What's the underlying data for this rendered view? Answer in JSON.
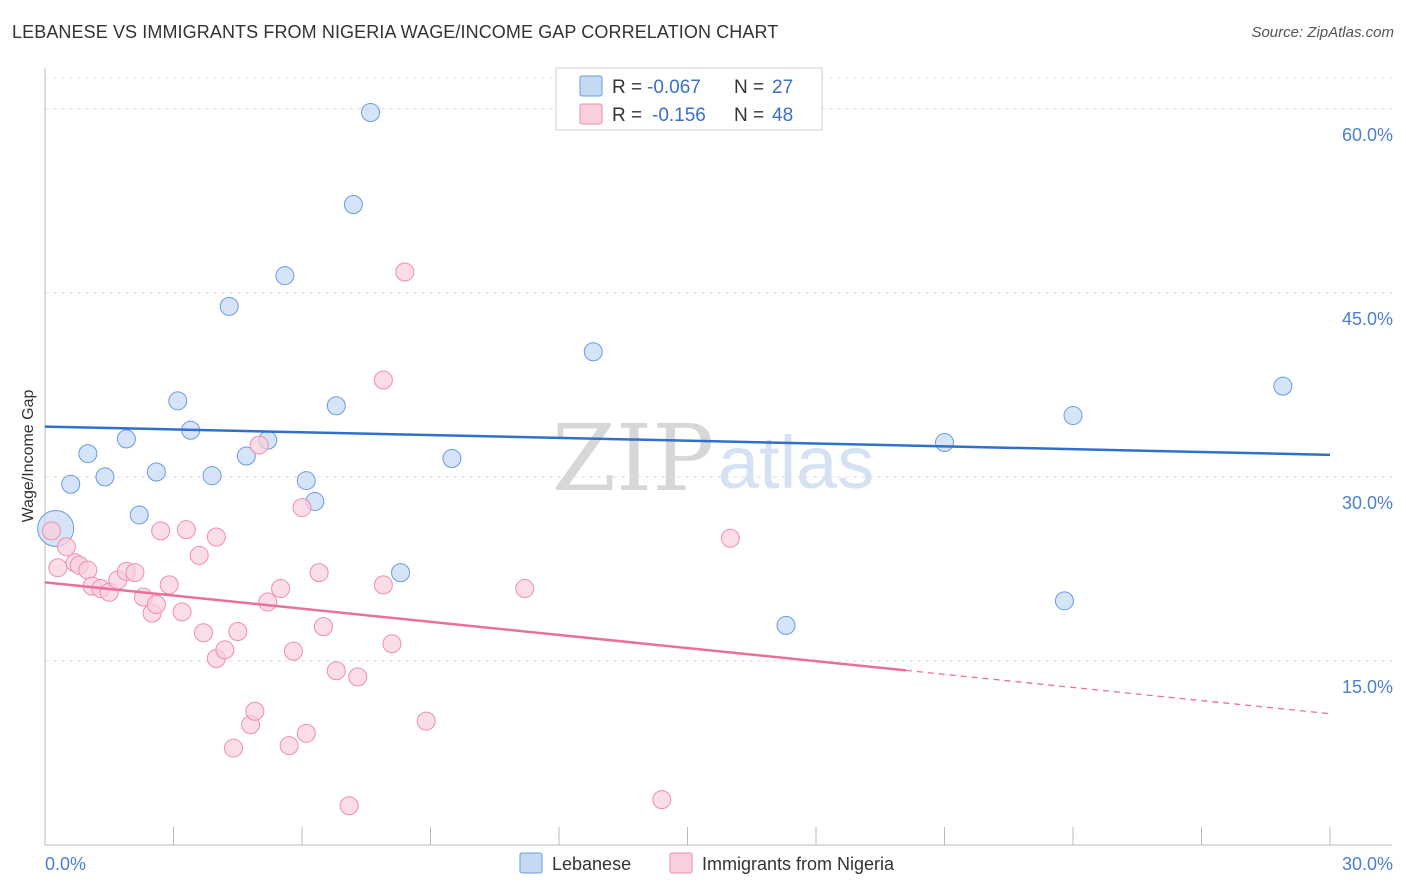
{
  "header": {
    "title": "LEBANESE VS IMMIGRANTS FROM NIGERIA WAGE/INCOME GAP CORRELATION CHART",
    "source": "Source: ZipAtlas.com"
  },
  "legend": {
    "rows": [
      {
        "r_label": "R =",
        "r_value": "-0.067",
        "n_label": "N =",
        "n_value": "27",
        "color": "#aac8ef"
      },
      {
        "r_label": "R =",
        "r_value": "-0.156",
        "n_label": "N =",
        "n_value": "48",
        "color": "#f5b8cb"
      }
    ]
  },
  "bottom_legend": {
    "items": [
      {
        "label": "Lebanese",
        "color": "#aac8ef"
      },
      {
        "label": "Immigrants from Nigeria",
        "color": "#f5b8cb"
      }
    ]
  },
  "watermark": {
    "part1": "ZIP",
    "part2": "atlas"
  },
  "chart_data": {
    "type": "scatter",
    "title": "LEBANESE VS IMMIGRANTS FROM NIGERIA WAGE/INCOME GAP CORRELATION CHART",
    "xlabel": "",
    "ylabel": "Wage/Income Gap",
    "xlim": [
      0,
      30
    ],
    "ylim": [
      0,
      63
    ],
    "x_tick_labels": [
      "0.0%",
      "30.0%"
    ],
    "y_ticks": [
      15,
      30,
      45,
      60
    ],
    "y_tick_labels": [
      "15.0%",
      "30.0%",
      "45.0%",
      "60.0%"
    ],
    "grid": true,
    "series": [
      {
        "name": "Lebanese",
        "color": "#6a9be0",
        "fill": "#c5d9f4",
        "points": [
          {
            "x": 0.25,
            "y": 25.8,
            "big": true
          },
          {
            "x": 0.6,
            "y": 29.4
          },
          {
            "x": 1.0,
            "y": 31.9
          },
          {
            "x": 1.4,
            "y": 30.0
          },
          {
            "x": 1.9,
            "y": 33.1
          },
          {
            "x": 2.2,
            "y": 26.9
          },
          {
            "x": 2.6,
            "y": 30.4
          },
          {
            "x": 3.1,
            "y": 36.2
          },
          {
            "x": 3.4,
            "y": 33.8
          },
          {
            "x": 3.9,
            "y": 30.1
          },
          {
            "x": 4.3,
            "y": 43.9
          },
          {
            "x": 4.7,
            "y": 31.7
          },
          {
            "x": 5.2,
            "y": 33.0
          },
          {
            "x": 5.6,
            "y": 46.4
          },
          {
            "x": 6.1,
            "y": 29.7
          },
          {
            "x": 6.3,
            "y": 28.0
          },
          {
            "x": 6.8,
            "y": 35.8
          },
          {
            "x": 7.2,
            "y": 52.2
          },
          {
            "x": 7.6,
            "y": 59.7
          },
          {
            "x": 8.3,
            "y": 22.2
          },
          {
            "x": 9.5,
            "y": 31.5
          },
          {
            "x": 12.8,
            "y": 40.2
          },
          {
            "x": 17.3,
            "y": 17.9
          },
          {
            "x": 21.0,
            "y": 32.8
          },
          {
            "x": 24.0,
            "y": 35.0
          },
          {
            "x": 23.8,
            "y": 19.9
          },
          {
            "x": 28.9,
            "y": 37.4
          }
        ]
      },
      {
        "name": "Immigrants from Nigeria",
        "color": "#ee8fac",
        "fill": "#f9cfdc",
        "points": [
          {
            "x": 0.15,
            "y": 25.6
          },
          {
            "x": 0.3,
            "y": 22.6
          },
          {
            "x": 0.5,
            "y": 24.3
          },
          {
            "x": 0.7,
            "y": 23.0
          },
          {
            "x": 0.8,
            "y": 22.8
          },
          {
            "x": 1.0,
            "y": 22.4
          },
          {
            "x": 1.1,
            "y": 21.1
          },
          {
            "x": 1.3,
            "y": 20.9
          },
          {
            "x": 1.5,
            "y": 20.6
          },
          {
            "x": 1.7,
            "y": 21.6
          },
          {
            "x": 1.9,
            "y": 22.3
          },
          {
            "x": 2.1,
            "y": 22.2
          },
          {
            "x": 2.3,
            "y": 20.2
          },
          {
            "x": 2.5,
            "y": 18.9
          },
          {
            "x": 2.6,
            "y": 19.6
          },
          {
            "x": 2.7,
            "y": 25.6
          },
          {
            "x": 2.9,
            "y": 21.2
          },
          {
            "x": 3.2,
            "y": 19.0
          },
          {
            "x": 3.3,
            "y": 25.7
          },
          {
            "x": 3.6,
            "y": 23.6
          },
          {
            "x": 3.7,
            "y": 17.3
          },
          {
            "x": 4.0,
            "y": 25.1
          },
          {
            "x": 4.0,
            "y": 15.2
          },
          {
            "x": 4.2,
            "y": 15.9
          },
          {
            "x": 4.4,
            "y": 7.9
          },
          {
            "x": 4.5,
            "y": 17.4
          },
          {
            "x": 4.8,
            "y": 9.8
          },
          {
            "x": 4.9,
            "y": 10.9
          },
          {
            "x": 5.0,
            "y": 32.6
          },
          {
            "x": 5.2,
            "y": 19.8
          },
          {
            "x": 5.5,
            "y": 20.9
          },
          {
            "x": 5.7,
            "y": 8.1
          },
          {
            "x": 5.8,
            "y": 15.8
          },
          {
            "x": 6.0,
            "y": 27.5
          },
          {
            "x": 6.1,
            "y": 9.1
          },
          {
            "x": 6.4,
            "y": 22.2
          },
          {
            "x": 6.5,
            "y": 17.8
          },
          {
            "x": 6.8,
            "y": 14.2
          },
          {
            "x": 7.1,
            "y": 3.2
          },
          {
            "x": 7.3,
            "y": 13.7
          },
          {
            "x": 7.9,
            "y": 37.9
          },
          {
            "x": 7.9,
            "y": 21.2
          },
          {
            "x": 8.1,
            "y": 16.4
          },
          {
            "x": 8.4,
            "y": 46.7
          },
          {
            "x": 8.9,
            "y": 10.1
          },
          {
            "x": 11.2,
            "y": 20.9
          },
          {
            "x": 14.4,
            "y": 3.7
          },
          {
            "x": 16.0,
            "y": 25.0
          }
        ]
      }
    ],
    "trend_lines": [
      {
        "series": "Lebanese",
        "color": "#2f70cc",
        "x_start": 0,
        "y_start": 34.1,
        "x_end": 30,
        "y_end": 31.8,
        "dashed_from": null
      },
      {
        "series": "Immigrants from Nigeria",
        "color": "#e8709a",
        "x_start": 0,
        "y_start": 21.4,
        "x_end": 30,
        "y_end": 10.7,
        "dashed_from": 20.1
      }
    ]
  }
}
